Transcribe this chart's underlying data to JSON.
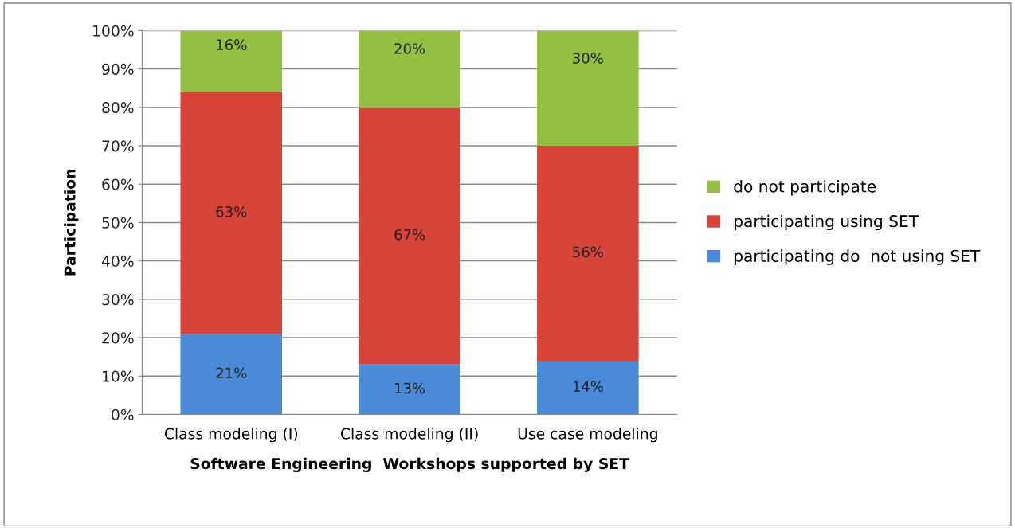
{
  "chart_data": {
    "type": "bar",
    "stacked": true,
    "xlabel": "Software Engineering  Workshops supported by SET",
    "ylabel": "Participation",
    "categories": [
      "Class modeling (I)",
      "Class modeling (II)",
      "Use case modeling"
    ],
    "series": [
      {
        "name": "participating do  not using SET",
        "color": "#4a8ad6",
        "values": [
          21,
          13,
          14
        ],
        "value_labels": [
          "21%",
          "13%",
          "14%"
        ]
      },
      {
        "name": "participating using SET",
        "color": "#d8433a",
        "values": [
          63,
          67,
          56
        ],
        "value_labels": [
          "63%",
          "67%",
          "56%"
        ]
      },
      {
        "name": "do not participate",
        "color": "#93c040",
        "values": [
          16,
          20,
          30
        ],
        "value_labels": [
          "16%",
          "20%",
          "30%"
        ]
      }
    ],
    "ylim": [
      0,
      100
    ],
    "yticks": [
      {
        "value": 0,
        "label": "0%"
      },
      {
        "value": 10,
        "label": "10%"
      },
      {
        "value": 20,
        "label": "20%"
      },
      {
        "value": 30,
        "label": "30%"
      },
      {
        "value": 40,
        "label": "40%"
      },
      {
        "value": 50,
        "label": "50%"
      },
      {
        "value": 60,
        "label": "60%"
      },
      {
        "value": 70,
        "label": "70%"
      },
      {
        "value": 80,
        "label": "80%"
      },
      {
        "value": 90,
        "label": "90%"
      },
      {
        "value": 100,
        "label": "100%"
      }
    ],
    "grid": "y",
    "legend": "right"
  }
}
